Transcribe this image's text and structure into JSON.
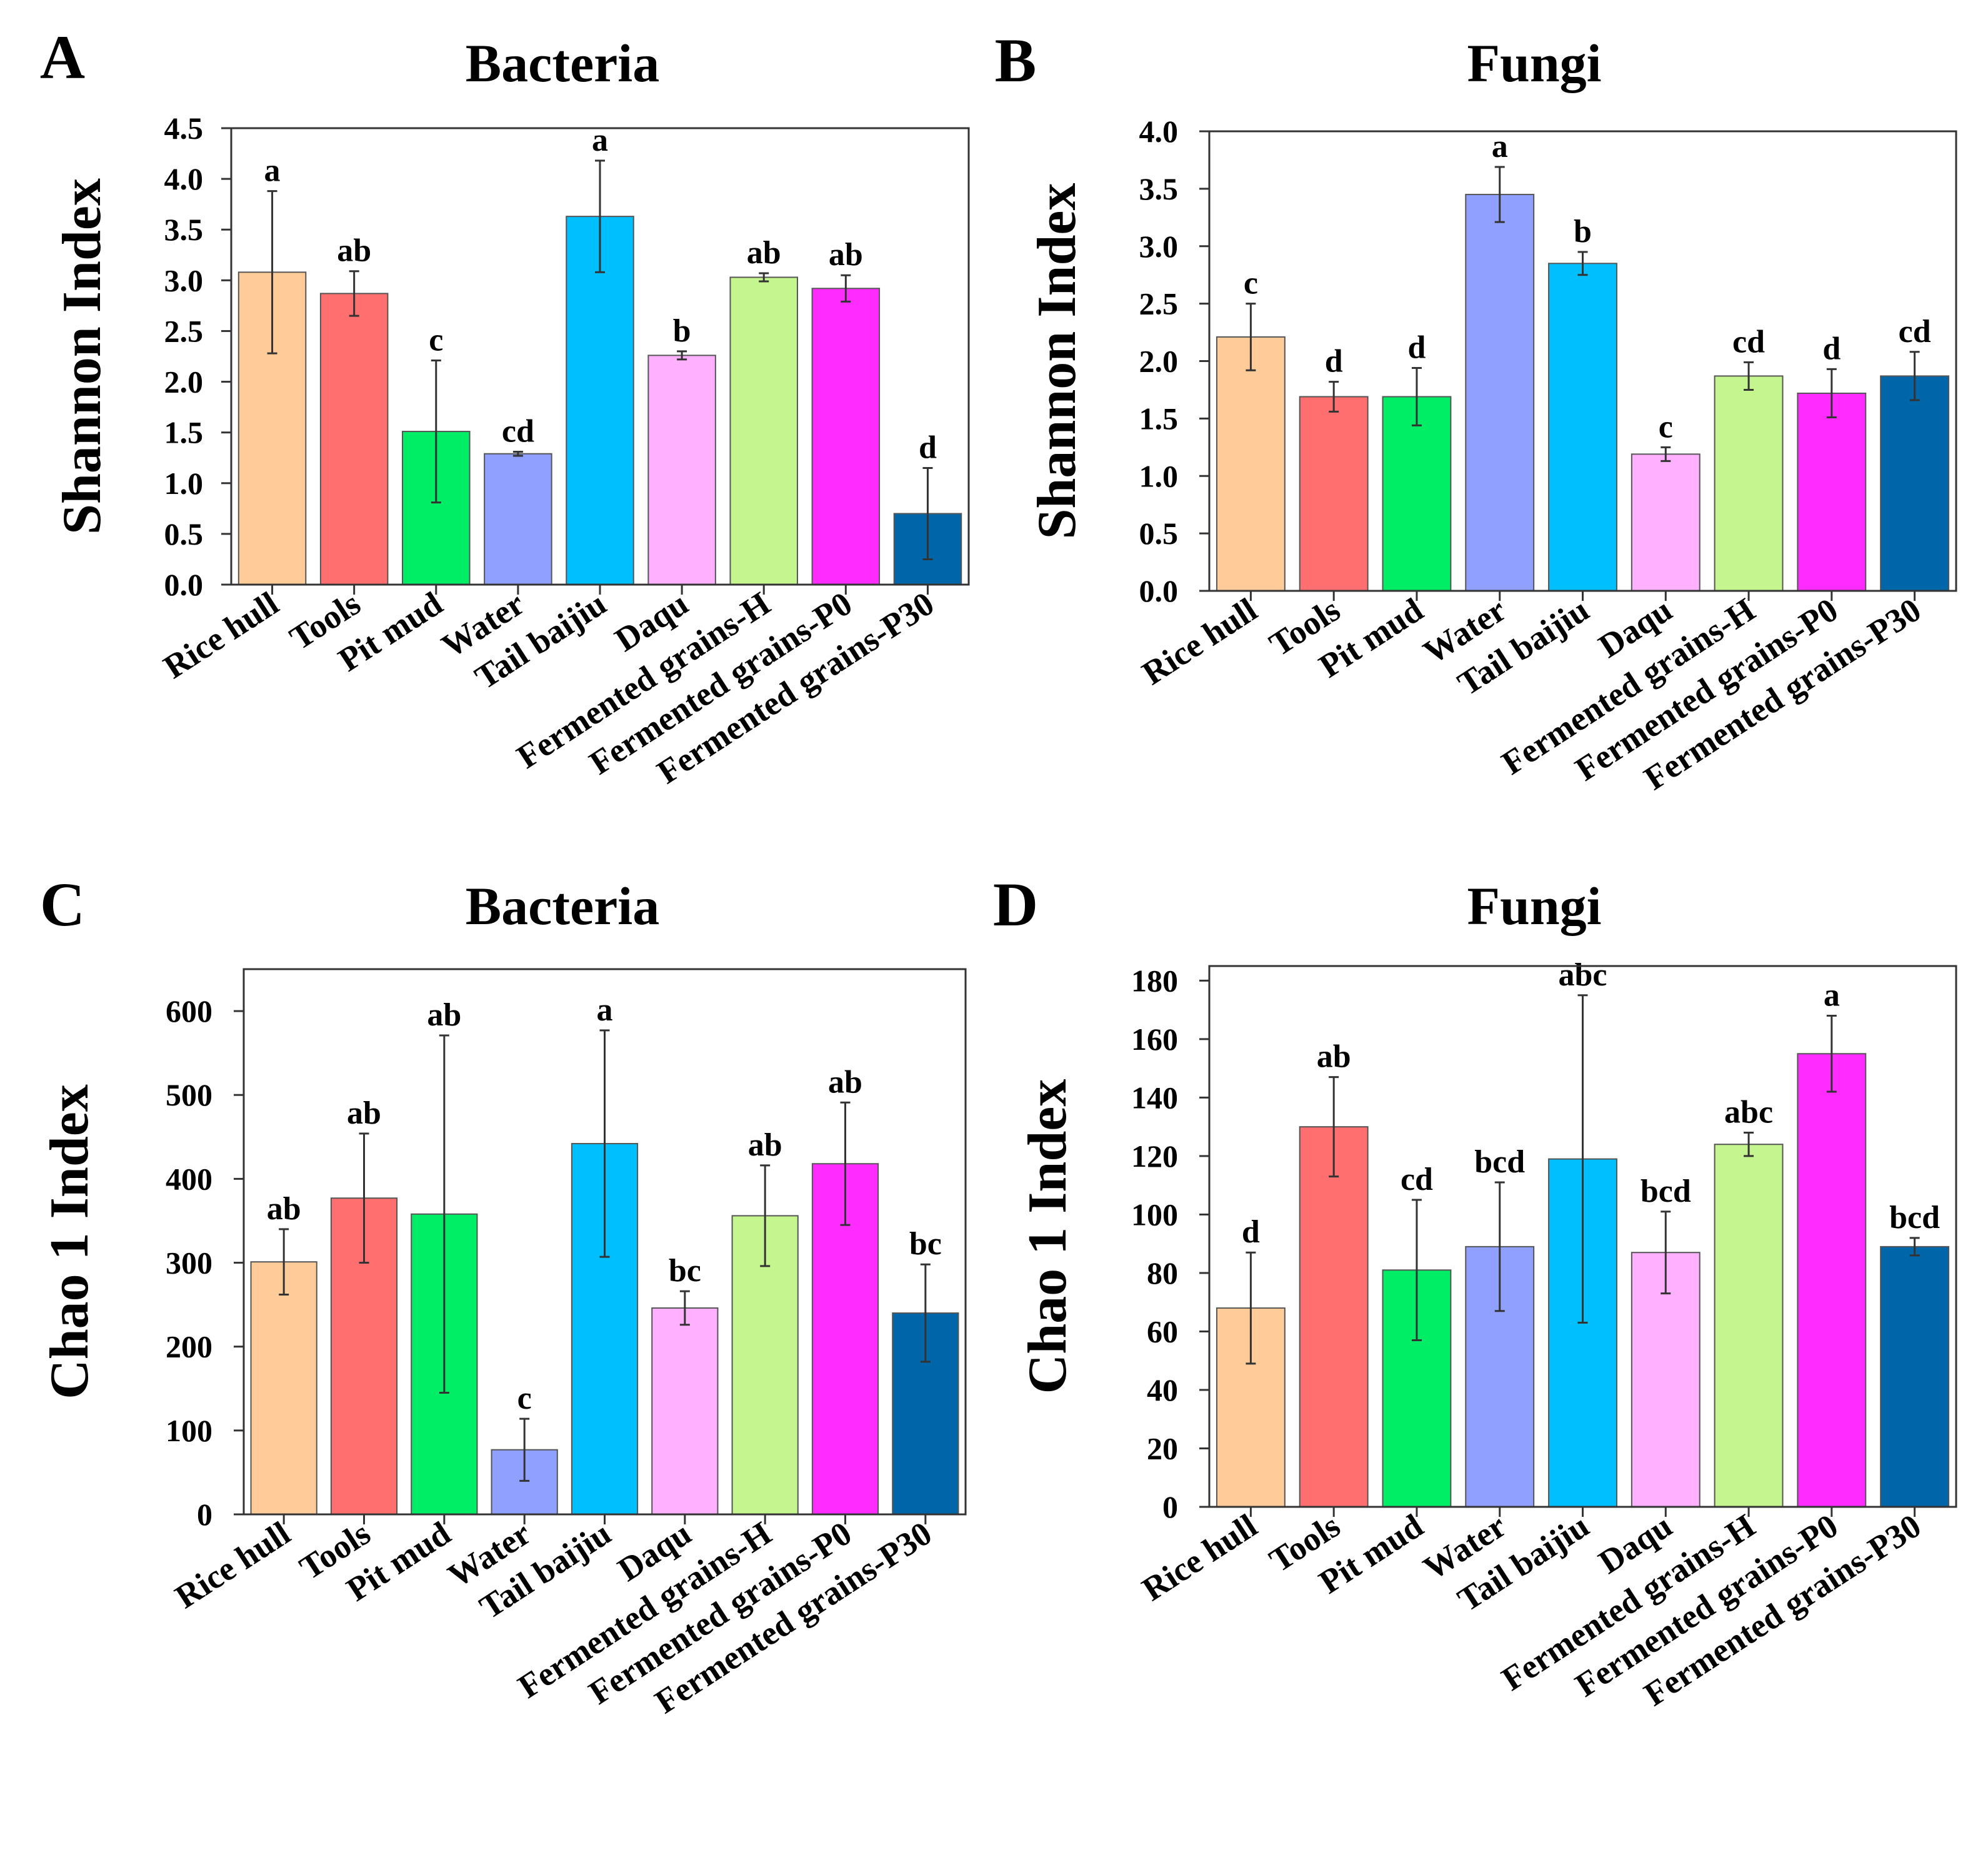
{
  "colors": [
    "#FFCC99",
    "#FF6F6F",
    "#00EE66",
    "#8FA0FF",
    "#00BFFF",
    "#FFB0FF",
    "#C4F58E",
    "#FF2BFF",
    "#0066AA"
  ],
  "chart_data": [
    {
      "type": "bar",
      "panel": "A",
      "title": "Bacteria",
      "ylabel": "Shannon Index",
      "xlabel": "",
      "ylim": [
        0,
        4.5
      ],
      "yticks": [
        "0.0",
        "0.5",
        "1.0",
        "1.5",
        "2.0",
        "2.5",
        "3.0",
        "3.5",
        "4.0",
        "4.5"
      ],
      "categories": [
        "Rice hull",
        "Tools",
        "Pit mud",
        "Water",
        "Tail baijiu",
        "Daqu",
        "Fermented grains-H",
        "Fermented grains-P0",
        "Fermented grains-P30"
      ],
      "values": [
        3.08,
        2.87,
        1.51,
        1.29,
        3.63,
        2.26,
        3.03,
        2.92,
        0.7
      ],
      "errors": [
        0.8,
        0.22,
        0.7,
        0.02,
        0.55,
        0.04,
        0.04,
        0.13,
        0.45
      ],
      "significance": [
        "a",
        "ab",
        "c",
        "cd",
        "a",
        "b",
        "ab",
        "ab",
        "d"
      ]
    },
    {
      "type": "bar",
      "panel": "B",
      "title": "Fungi",
      "ylabel": "Shannon Index",
      "xlabel": "",
      "ylim": [
        0,
        4.0
      ],
      "yticks": [
        "0.0",
        "0.5",
        "1.0",
        "1.5",
        "2.0",
        "2.5",
        "3.0",
        "3.5",
        "4.0"
      ],
      "categories": [
        "Rice hull",
        "Tools",
        "Pit mud",
        "Water",
        "Tail baijiu",
        "Daqu",
        "Fermented grains-H",
        "Fermented grains-P0",
        "Fermented grains-P30"
      ],
      "values": [
        2.21,
        1.69,
        1.69,
        3.45,
        2.85,
        1.19,
        1.87,
        1.72,
        1.87
      ],
      "errors": [
        0.29,
        0.13,
        0.25,
        0.24,
        0.1,
        0.06,
        0.12,
        0.21,
        0.21
      ],
      "significance": [
        "c",
        "d",
        "d",
        "a",
        "b",
        "c",
        "cd",
        "d",
        "cd"
      ]
    },
    {
      "type": "bar",
      "panel": "C",
      "title": "Bacteria",
      "ylabel": "Chao 1 Index",
      "xlabel": "",
      "ylim": [
        0,
        650
      ],
      "yticks": [
        "0",
        "100",
        "200",
        "300",
        "400",
        "500",
        "600"
      ],
      "categories": [
        "Rice hull",
        "Tools",
        "Pit mud",
        "Water",
        "Tail baijiu",
        "Daqu",
        "Fermented grains-H",
        "Fermented grains-P0",
        "Fermented grains-P30"
      ],
      "values": [
        301,
        377,
        358,
        77,
        442,
        246,
        356,
        418,
        240
      ],
      "errors": [
        39,
        77,
        213,
        37,
        135,
        20,
        60,
        73,
        58
      ],
      "significance": [
        "ab",
        "ab",
        "ab",
        "c",
        "a",
        "bc",
        "ab",
        "ab",
        "bc"
      ]
    },
    {
      "type": "bar",
      "panel": "D",
      "title": "Fungi",
      "ylabel": "Chao 1 Index",
      "xlabel": "",
      "ylim": [
        0,
        185
      ],
      "yticks": [
        "0",
        "20",
        "40",
        "60",
        "80",
        "100",
        "120",
        "140",
        "160",
        "180"
      ],
      "categories": [
        "Rice hull",
        "Tools",
        "Pit mud",
        "Water",
        "Tail baijiu",
        "Daqu",
        "Fermented grains-H",
        "Fermented grains-P0",
        "Fermented grains-P30"
      ],
      "values": [
        68,
        130,
        81,
        89,
        119,
        87,
        124,
        155,
        89
      ],
      "errors": [
        19,
        17,
        24,
        22,
        56,
        14,
        4,
        13,
        3
      ],
      "significance": [
        "d",
        "ab",
        "cd",
        "bcd",
        "abc",
        "bcd",
        "abc",
        "a",
        "bcd"
      ]
    }
  ]
}
